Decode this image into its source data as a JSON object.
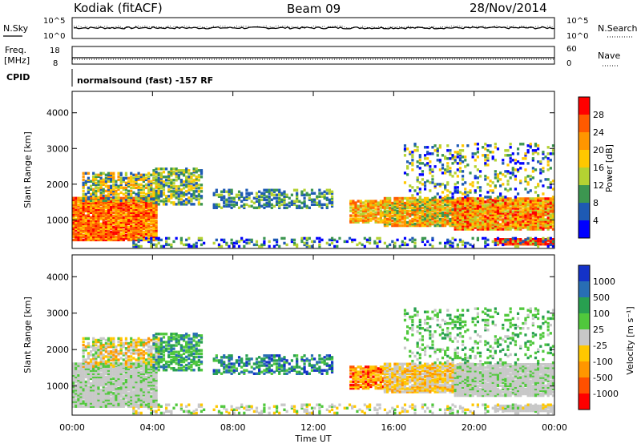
{
  "header": {
    "radar": "Kodiak (fitACF)",
    "beam": "Beam 09",
    "date": "28/Nov/2014"
  },
  "noise_panel": {
    "left_label": "N.Sky",
    "right_label": "N.Search",
    "left_ticks": [
      "10^5",
      "10^0"
    ],
    "right_ticks": [
      "10^5",
      "10^0"
    ]
  },
  "freq_panel": {
    "left_label_1": "Freq.",
    "left_label_2": "[MHz]",
    "right_label": "Nave",
    "left_ticks": [
      "18",
      "8"
    ],
    "right_ticks": [
      "60",
      "0"
    ]
  },
  "cpid": {
    "label": "CPID",
    "value": "normalsound (fast) -157 RF"
  },
  "power_colorbar": {
    "title": "Power [dB]",
    "labels": [
      "28",
      "24",
      "20",
      "16",
      "12",
      "8",
      "4"
    ],
    "colors": [
      "#ff0000",
      "#ff5a00",
      "#ff9600",
      "#ffc800",
      "#b4d232",
      "#3c9650",
      "#1e5ab4",
      "#0000ff"
    ]
  },
  "velocity_colorbar": {
    "title": "Velocity [m s⁻¹]",
    "labels": [
      "1000",
      "500",
      "100",
      "25",
      "-25",
      "-100",
      "-500",
      "-1000"
    ],
    "colors": [
      "#1432c8",
      "#286eb4",
      "#28a050",
      "#50c83c",
      "#c8c8c8",
      "#ffc800",
      "#ff9600",
      "#ff5000",
      "#ff0000"
    ]
  },
  "chart_data": {
    "type": "heatmap",
    "panels": [
      {
        "name": "power",
        "ylabel": "Slant Range [km]",
        "ylim": [
          200,
          4600
        ],
        "yticks": [
          1000,
          2000,
          3000,
          4000
        ],
        "x_unit": "hours UT"
      },
      {
        "name": "velocity",
        "ylabel": "Slant Range [km]",
        "ylim": [
          200,
          4600
        ],
        "yticks": [
          1000,
          2000,
          3000,
          4000
        ],
        "x_unit": "hours UT"
      }
    ],
    "xlabel": "Time UT",
    "xlim": [
      0,
      24
    ],
    "xticks": [
      0,
      4,
      8,
      12,
      16,
      20,
      24
    ],
    "xtick_labels": [
      "00:00",
      "04:00",
      "08:00",
      "12:00",
      "16:00",
      "20:00",
      "00:00"
    ]
  }
}
